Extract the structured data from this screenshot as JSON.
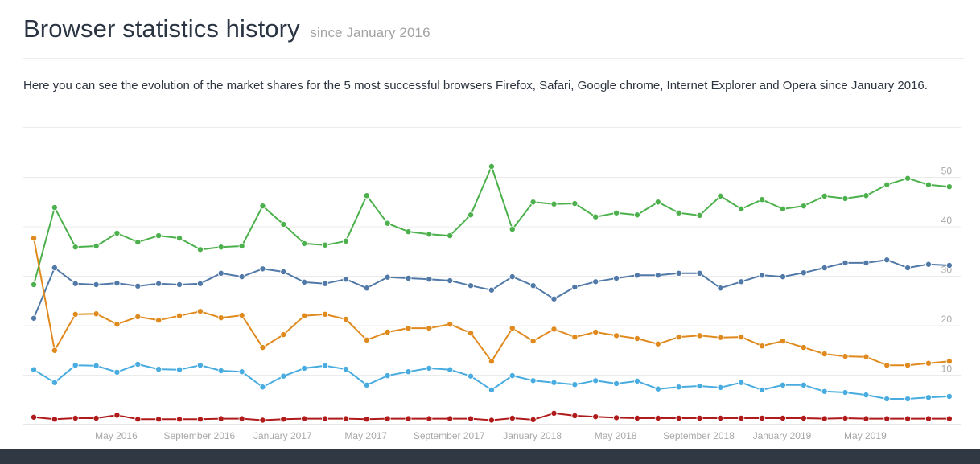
{
  "header": {
    "title": "Browser statistics history",
    "subtitle": "since January 2016"
  },
  "intro": {
    "text": "Here you can see the evolution of the market shares for the 5 most successful browsers Firefox, Safari, Google chrome, Internet Explorer and Opera since January 2016."
  },
  "chart_data": {
    "type": "line",
    "title": "",
    "xlabel": "",
    "ylabel": "",
    "ylim": [
      0,
      55
    ],
    "yticks": [
      10,
      20,
      30,
      40,
      50
    ],
    "grid": true,
    "legend": "none",
    "y_axis_position": "right",
    "x_tick_labels": [
      {
        "index": 4,
        "label": "May 2016"
      },
      {
        "index": 8,
        "label": "September 2016"
      },
      {
        "index": 12,
        "label": "January 2017"
      },
      {
        "index": 16,
        "label": "May 2017"
      },
      {
        "index": 20,
        "label": "September 2017"
      },
      {
        "index": 24,
        "label": "January 2018"
      },
      {
        "index": 28,
        "label": "May 2018"
      },
      {
        "index": 32,
        "label": "September 2018"
      },
      {
        "index": 36,
        "label": "January 2019"
      },
      {
        "index": 40,
        "label": "May 2019"
      }
    ],
    "x": [
      "2016-01",
      "2016-02",
      "2016-03",
      "2016-04",
      "2016-05",
      "2016-06",
      "2016-07",
      "2016-08",
      "2016-09",
      "2016-10",
      "2016-11",
      "2016-12",
      "2017-01",
      "2017-02",
      "2017-03",
      "2017-04",
      "2017-05",
      "2017-06",
      "2017-07",
      "2017-08",
      "2017-09",
      "2017-10",
      "2017-11",
      "2017-12",
      "2018-01",
      "2018-02",
      "2018-03",
      "2018-04",
      "2018-05",
      "2018-06",
      "2018-07",
      "2018-08",
      "2018-09",
      "2018-10",
      "2018-11",
      "2018-12",
      "2019-01",
      "2019-02",
      "2019-03",
      "2019-04",
      "2019-05",
      "2019-06",
      "2019-07",
      "2019-08",
      "2019-09"
    ],
    "series": [
      {
        "name": "Google chrome",
        "color": "#4cb04c",
        "values": [
          28.3,
          43.9,
          35.9,
          36.1,
          38.7,
          36.9,
          38.2,
          37.7,
          35.4,
          35.9,
          36.1,
          44.2,
          40.5,
          36.6,
          36.3,
          37.1,
          46.3,
          40.7,
          39.0,
          38.5,
          38.2,
          42.4,
          52.2,
          39.5,
          45.0,
          44.6,
          44.7,
          42.0,
          42.8,
          42.4,
          45.0,
          42.8,
          42.3,
          46.2,
          43.6,
          45.5,
          43.6,
          44.2,
          46.2,
          45.7,
          46.3,
          48.5,
          49.8,
          48.5,
          48.1
        ]
      },
      {
        "name": "Firefox",
        "color": "#5079a8",
        "values": [
          21.5,
          31.7,
          28.5,
          28.3,
          28.6,
          28.0,
          28.5,
          28.3,
          28.5,
          30.6,
          29.9,
          31.5,
          30.9,
          28.8,
          28.5,
          29.4,
          27.6,
          29.8,
          29.6,
          29.4,
          29.1,
          28.1,
          27.2,
          29.9,
          28.1,
          25.4,
          27.8,
          28.9,
          29.6,
          30.2,
          30.2,
          30.6,
          30.6,
          27.6,
          28.9,
          30.2,
          29.9,
          30.7,
          31.7,
          32.7,
          32.7,
          33.3,
          31.7,
          32.4,
          32.2
        ]
      },
      {
        "name": "Internet Explorer",
        "color": "#e08a1e",
        "values": [
          37.7,
          15.0,
          22.3,
          22.4,
          20.3,
          21.8,
          21.1,
          22.0,
          22.9,
          21.6,
          22.1,
          15.6,
          18.2,
          22.0,
          22.3,
          21.3,
          17.1,
          18.7,
          19.5,
          19.5,
          20.3,
          18.5,
          12.8,
          19.5,
          16.9,
          19.3,
          17.7,
          18.7,
          18.0,
          17.4,
          16.3,
          17.7,
          18.0,
          17.6,
          17.7,
          15.9,
          16.9,
          15.6,
          14.3,
          13.8,
          13.7,
          12.0,
          12.0,
          12.4,
          12.8
        ]
      },
      {
        "name": "Safari",
        "color": "#48ace0",
        "values": [
          11.1,
          8.5,
          12.0,
          11.9,
          10.6,
          12.2,
          11.2,
          11.1,
          12.0,
          10.9,
          10.7,
          7.6,
          9.8,
          11.4,
          11.9,
          11.2,
          8.0,
          9.9,
          10.7,
          11.4,
          11.1,
          9.8,
          7.0,
          9.9,
          8.9,
          8.5,
          8.1,
          8.9,
          8.3,
          8.8,
          7.2,
          7.6,
          7.8,
          7.5,
          8.5,
          7.0,
          8.0,
          8.0,
          6.7,
          6.5,
          6.0,
          5.2,
          5.2,
          5.5,
          5.7
        ]
      },
      {
        "name": "Opera",
        "color": "#b01a1a",
        "values": [
          1.5,
          1.1,
          1.3,
          1.3,
          1.9,
          1.1,
          1.1,
          1.1,
          1.1,
          1.2,
          1.2,
          0.9,
          1.1,
          1.2,
          1.2,
          1.2,
          1.1,
          1.2,
          1.2,
          1.2,
          1.2,
          1.2,
          0.9,
          1.3,
          1.0,
          2.3,
          1.8,
          1.6,
          1.4,
          1.3,
          1.3,
          1.3,
          1.3,
          1.3,
          1.3,
          1.3,
          1.3,
          1.3,
          1.2,
          1.3,
          1.2,
          1.2,
          1.2,
          1.2,
          1.2
        ]
      }
    ]
  },
  "colors": {
    "title": "#2a3443",
    "subtitle": "#a3a3a3",
    "grid": "#ebebeb",
    "axis_label": "#a8a8a8",
    "footer": "#2f3843"
  }
}
